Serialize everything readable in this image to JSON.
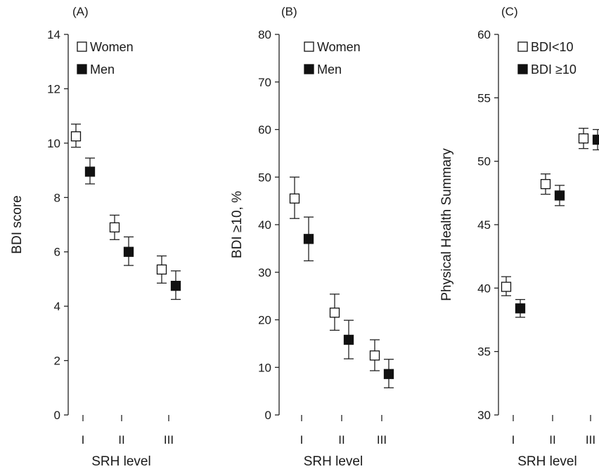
{
  "chart_data": [
    {
      "type": "scatter",
      "panel_label": "(A)",
      "xlabel": "SRH level",
      "ylabel": "BDI score",
      "categories": [
        "I",
        "II",
        "III"
      ],
      "ylim": [
        0,
        14
      ],
      "yticks": [
        0,
        2,
        4,
        6,
        8,
        10,
        12,
        14
      ],
      "legend_position": "top-left",
      "series": [
        {
          "name": "Women",
          "marker": "open-square",
          "values": [
            10.25,
            6.9,
            5.35
          ],
          "err_low": [
            9.85,
            6.45,
            4.85
          ],
          "err_high": [
            10.7,
            7.35,
            5.85
          ]
        },
        {
          "name": "Men",
          "marker": "filled-square",
          "values": [
            8.95,
            6.0,
            4.75
          ],
          "err_low": [
            8.5,
            5.5,
            4.25
          ],
          "err_high": [
            9.45,
            6.55,
            5.3
          ]
        }
      ]
    },
    {
      "type": "scatter",
      "panel_label": "(B)",
      "xlabel": "SRH level",
      "ylabel": "BDI ≥10, %",
      "categories": [
        "I",
        "II",
        "III"
      ],
      "ylim": [
        0,
        80
      ],
      "yticks": [
        0,
        10,
        20,
        30,
        40,
        50,
        60,
        70,
        80
      ],
      "legend_position": "top-left",
      "series": [
        {
          "name": "Women",
          "marker": "open-square",
          "values": [
            45.5,
            21.5,
            12.5
          ],
          "err_low": [
            41.3,
            17.8,
            9.3
          ],
          "err_high": [
            50,
            25.4,
            15.8
          ]
        },
        {
          "name": "Men",
          "marker": "filled-square",
          "values": [
            37,
            15.8,
            8.6
          ],
          "err_low": [
            32.4,
            11.8,
            5.7
          ],
          "err_high": [
            41.6,
            19.9,
            11.7
          ]
        }
      ]
    },
    {
      "type": "scatter",
      "panel_label": "(C)",
      "xlabel": "SRH level",
      "ylabel": "Physical Health Summary",
      "categories": [
        "I",
        "II",
        "III"
      ],
      "ylim": [
        30,
        60
      ],
      "yticks": [
        30,
        35,
        40,
        45,
        50,
        55,
        60
      ],
      "legend_position": "top-left",
      "series": [
        {
          "name": "BDI<10",
          "marker": "open-square",
          "values": [
            40.1,
            48.2,
            51.8
          ],
          "err_low": [
            39.4,
            47.4,
            51.0
          ],
          "err_high": [
            40.9,
            49.0,
            52.6
          ]
        },
        {
          "name": "BDI ≥10",
          "marker": "filled-square",
          "values": [
            38.4,
            47.3,
            51.7
          ],
          "err_low": [
            37.7,
            46.5,
            50.9
          ],
          "err_high": [
            39.1,
            48.1,
            52.5
          ]
        }
      ]
    }
  ]
}
